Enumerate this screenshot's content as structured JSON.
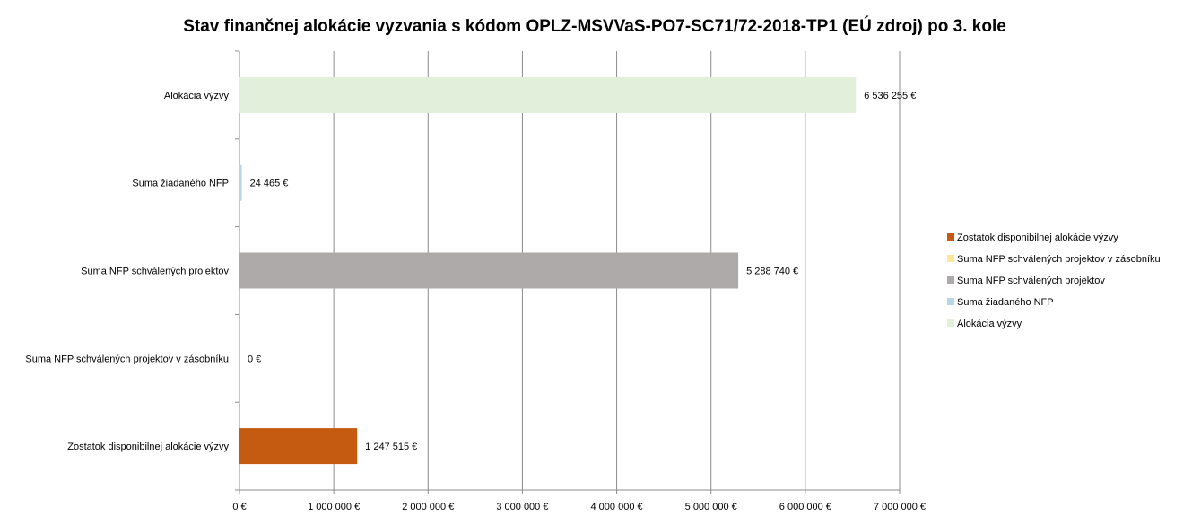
{
  "chart_data": {
    "type": "bar",
    "orientation": "horizontal",
    "title": "Stav finančnej alokácie vyzvania s kódom OPLZ-MSVVaS-PO7-SC71/72-2018-TP1 (EÚ zdroj) po 3. kole",
    "categories": [
      "Alokácia výzvy",
      "Suma žiadaného NFP",
      "Suma NFP schválených projektov",
      "Suma NFP schválených projektov v zásobníku",
      "Zostatok disponibilnej alokácie výzvy"
    ],
    "values": [
      6536255,
      24465,
      5288740,
      0,
      1247515
    ],
    "data_labels": [
      "6 536 255 €",
      "24 465 €",
      "5 288 740 €",
      "0 €",
      "1 247 515 €"
    ],
    "colors": [
      "#e2efda",
      "#b7d7e8",
      "#aeaaaa",
      "#ffe699",
      "#c55a11"
    ],
    "xlim": [
      0,
      7000000
    ],
    "x_ticks": [
      0,
      1000000,
      2000000,
      3000000,
      4000000,
      5000000,
      6000000,
      7000000
    ],
    "x_tick_labels": [
      "0 €",
      "1 000 000 €",
      "2 000 000 €",
      "3 000 000 €",
      "4 000 000 €",
      "5 000 000 €",
      "6 000 000 €",
      "7 000 000 €"
    ],
    "grid": true,
    "legend_position": "right",
    "legend": [
      {
        "label": "Zostatok disponibilnej alokácie výzvy",
        "color": "#c55a11"
      },
      {
        "label": "Suma NFP schválených projektov v zásobníku",
        "color": "#ffe699"
      },
      {
        "label": "Suma NFP schválených projektov",
        "color": "#aeaaaa"
      },
      {
        "label": "Suma žiadaného NFP",
        "color": "#b7d7e8"
      },
      {
        "label": "Alokácia výzvy",
        "color": "#e2efda"
      }
    ]
  }
}
